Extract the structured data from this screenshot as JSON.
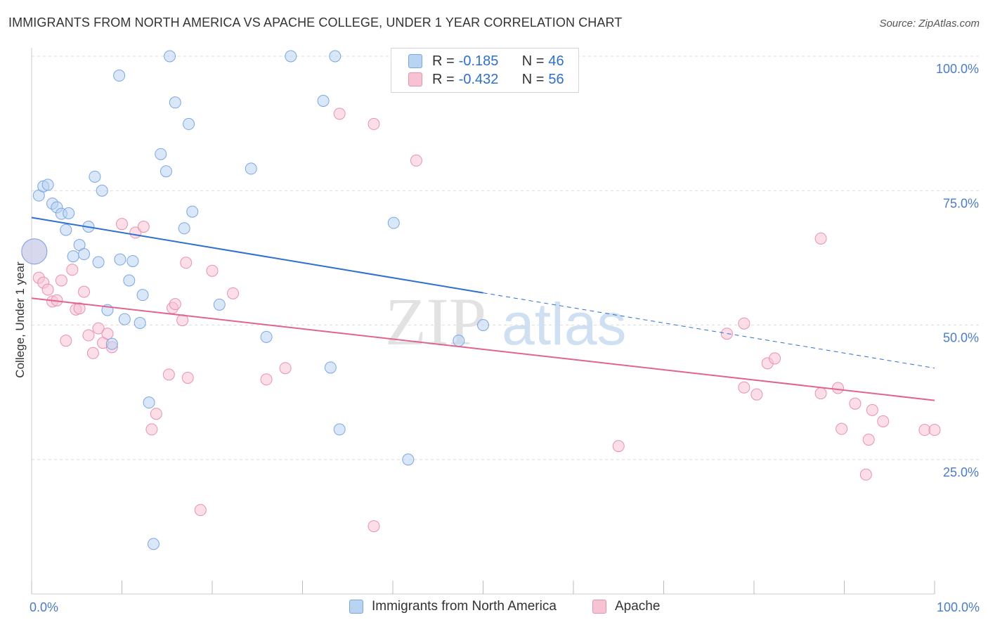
{
  "title": "IMMIGRANTS FROM NORTH AMERICA VS APACHE COLLEGE, UNDER 1 YEAR CORRELATION CHART",
  "source": "Source: ZipAtlas.com",
  "watermark": {
    "zip": "ZIP",
    "atlas": "atlas"
  },
  "legend": {
    "rows": [
      {
        "r_key": "R =",
        "r_val": "-0.185",
        "n_key": "N =",
        "n_val": "46"
      },
      {
        "r_key": "R =",
        "r_val": "-0.432",
        "n_key": "N =",
        "n_val": "56"
      }
    ]
  },
  "colors": {
    "blue_fill": "#b9d3f3",
    "blue_stroke": "#7aa7e0",
    "blue_line": "#2e6fcf",
    "pink_fill": "#f7c3d3",
    "pink_stroke": "#e892ae",
    "pink_line": "#e0648f",
    "grid": "#dddddd",
    "tick_text": "#4a7cc7"
  },
  "chart_data": {
    "type": "scatter",
    "title": "IMMIGRANTS FROM NORTH AMERICA VS APACHE COLLEGE, UNDER 1 YEAR CORRELATION CHART",
    "xlabel": "",
    "ylabel": "College, Under 1 year",
    "xlim": [
      0,
      100
    ],
    "ylim": [
      0,
      105
    ],
    "x_tick_labels": [
      "0.0%",
      "100.0%"
    ],
    "y_ticks": [
      25,
      50,
      75,
      100
    ],
    "y_tick_labels": [
      "25.0%",
      "50.0%",
      "75.0%",
      "100.0%"
    ],
    "grid": true,
    "legend_position": "bottom",
    "series": [
      {
        "name": "Immigrants from North America",
        "color": "#7aa7e0",
        "trend": {
          "x": [
            0,
            50
          ],
          "y": [
            70,
            56
          ],
          "dashed_to": [
            100,
            42
          ]
        },
        "points": [
          {
            "x": 0.3,
            "y": 63.7,
            "big": true
          },
          {
            "x": 0.8,
            "y": 74.1
          },
          {
            "x": 1.3,
            "y": 75.8
          },
          {
            "x": 1.8,
            "y": 76.1
          },
          {
            "x": 2.3,
            "y": 72.6
          },
          {
            "x": 2.8,
            "y": 71.9
          },
          {
            "x": 3.3,
            "y": 70.7
          },
          {
            "x": 3.8,
            "y": 67.7
          },
          {
            "x": 4.1,
            "y": 70.8
          },
          {
            "x": 4.6,
            "y": 62.8
          },
          {
            "x": 5.3,
            "y": 64.9
          },
          {
            "x": 5.8,
            "y": 63.2
          },
          {
            "x": 6.3,
            "y": 68.3
          },
          {
            "x": 7.0,
            "y": 77.6
          },
          {
            "x": 7.4,
            "y": 61.7
          },
          {
            "x": 7.8,
            "y": 75.0
          },
          {
            "x": 8.4,
            "y": 52.8
          },
          {
            "x": 8.9,
            "y": 46.5
          },
          {
            "x": 9.7,
            "y": 96.4
          },
          {
            "x": 9.8,
            "y": 62.2
          },
          {
            "x": 10.3,
            "y": 51.1
          },
          {
            "x": 10.8,
            "y": 58.3
          },
          {
            "x": 11.2,
            "y": 61.9
          },
          {
            "x": 12.0,
            "y": 50.4
          },
          {
            "x": 12.3,
            "y": 55.6
          },
          {
            "x": 13.0,
            "y": 35.6
          },
          {
            "x": 13.5,
            "y": 9.3
          },
          {
            "x": 14.3,
            "y": 81.8
          },
          {
            "x": 14.9,
            "y": 78.6
          },
          {
            "x": 15.3,
            "y": 100.0
          },
          {
            "x": 15.9,
            "y": 91.4
          },
          {
            "x": 16.9,
            "y": 68.0
          },
          {
            "x": 17.4,
            "y": 87.4
          },
          {
            "x": 17.8,
            "y": 71.1
          },
          {
            "x": 20.8,
            "y": 53.8
          },
          {
            "x": 24.3,
            "y": 79.1
          },
          {
            "x": 26.0,
            "y": 47.8
          },
          {
            "x": 28.7,
            "y": 100.0
          },
          {
            "x": 32.3,
            "y": 91.7
          },
          {
            "x": 33.1,
            "y": 42.1
          },
          {
            "x": 33.6,
            "y": 100.0
          },
          {
            "x": 34.1,
            "y": 30.6
          },
          {
            "x": 40.1,
            "y": 69.0
          },
          {
            "x": 41.7,
            "y": 25.0
          },
          {
            "x": 47.3,
            "y": 47.1
          },
          {
            "x": 50.0,
            "y": 50.0
          }
        ]
      },
      {
        "name": "Apache",
        "color": "#e892ae",
        "trend": {
          "x": [
            0,
            100
          ],
          "y": [
            55,
            36
          ]
        },
        "points": [
          {
            "x": 0.3,
            "y": 63.7,
            "big": true
          },
          {
            "x": 0.8,
            "y": 58.8
          },
          {
            "x": 1.3,
            "y": 57.9
          },
          {
            "x": 1.8,
            "y": 56.6
          },
          {
            "x": 2.3,
            "y": 54.4
          },
          {
            "x": 2.8,
            "y": 54.6
          },
          {
            "x": 3.3,
            "y": 58.3
          },
          {
            "x": 3.8,
            "y": 47.1
          },
          {
            "x": 4.5,
            "y": 60.3
          },
          {
            "x": 4.9,
            "y": 52.9
          },
          {
            "x": 5.3,
            "y": 53.1
          },
          {
            "x": 5.8,
            "y": 56.2
          },
          {
            "x": 6.3,
            "y": 48.1
          },
          {
            "x": 6.8,
            "y": 44.8
          },
          {
            "x": 7.4,
            "y": 49.4
          },
          {
            "x": 7.9,
            "y": 46.7
          },
          {
            "x": 8.4,
            "y": 48.4
          },
          {
            "x": 8.9,
            "y": 45.9
          },
          {
            "x": 10.0,
            "y": 68.8
          },
          {
            "x": 11.5,
            "y": 67.2
          },
          {
            "x": 12.4,
            "y": 68.3
          },
          {
            "x": 13.3,
            "y": 30.6
          },
          {
            "x": 13.8,
            "y": 33.5
          },
          {
            "x": 15.2,
            "y": 40.8
          },
          {
            "x": 15.6,
            "y": 53.2
          },
          {
            "x": 15.9,
            "y": 53.9
          },
          {
            "x": 16.7,
            "y": 50.9
          },
          {
            "x": 17.1,
            "y": 61.6
          },
          {
            "x": 17.3,
            "y": 40.2
          },
          {
            "x": 18.7,
            "y": 15.6
          },
          {
            "x": 20.0,
            "y": 60.1
          },
          {
            "x": 22.3,
            "y": 55.9
          },
          {
            "x": 26.0,
            "y": 39.9
          },
          {
            "x": 28.1,
            "y": 42.0
          },
          {
            "x": 34.1,
            "y": 89.3
          },
          {
            "x": 37.9,
            "y": 87.4
          },
          {
            "x": 37.9,
            "y": 12.6
          },
          {
            "x": 42.6,
            "y": 80.6
          },
          {
            "x": 65.0,
            "y": 27.5
          },
          {
            "x": 77.0,
            "y": 48.4
          },
          {
            "x": 78.9,
            "y": 38.4
          },
          {
            "x": 78.9,
            "y": 50.3
          },
          {
            "x": 80.3,
            "y": 37.1
          },
          {
            "x": 81.5,
            "y": 42.9
          },
          {
            "x": 82.3,
            "y": 43.8
          },
          {
            "x": 87.4,
            "y": 66.1
          },
          {
            "x": 87.4,
            "y": 37.3
          },
          {
            "x": 89.3,
            "y": 38.3
          },
          {
            "x": 89.7,
            "y": 30.7
          },
          {
            "x": 91.2,
            "y": 35.4
          },
          {
            "x": 92.4,
            "y": 22.2
          },
          {
            "x": 92.7,
            "y": 28.7
          },
          {
            "x": 93.1,
            "y": 34.2
          },
          {
            "x": 94.3,
            "y": 32.1
          },
          {
            "x": 98.9,
            "y": 30.5
          },
          {
            "x": 100.0,
            "y": 30.5
          }
        ]
      }
    ]
  }
}
